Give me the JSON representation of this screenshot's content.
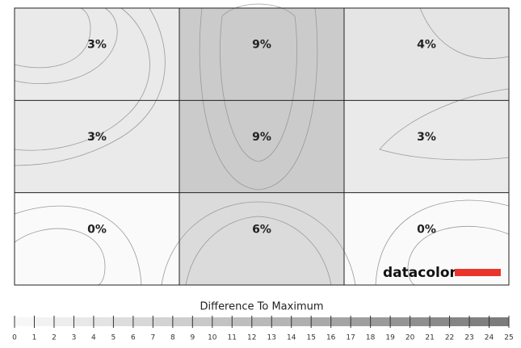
{
  "chart_data": {
    "type": "heatmap",
    "values": [
      [
        3,
        9,
        4
      ],
      [
        3,
        9,
        3
      ],
      [
        0,
        6,
        0
      ]
    ],
    "value_labels": [
      [
        "3%",
        "9%",
        "4%"
      ],
      [
        "3%",
        "9%",
        "3%"
      ],
      [
        "0%",
        "6%",
        "0%"
      ]
    ],
    "brand": "datacolor",
    "colorbar": {
      "title": "Difference To Maximum",
      "lim": [
        0,
        25
      ],
      "ticks": [
        0,
        1,
        2,
        3,
        4,
        5,
        6,
        7,
        8,
        9,
        10,
        11,
        12,
        13,
        14,
        15,
        16,
        17,
        18,
        19,
        20,
        21,
        22,
        23,
        24,
        25
      ]
    }
  }
}
